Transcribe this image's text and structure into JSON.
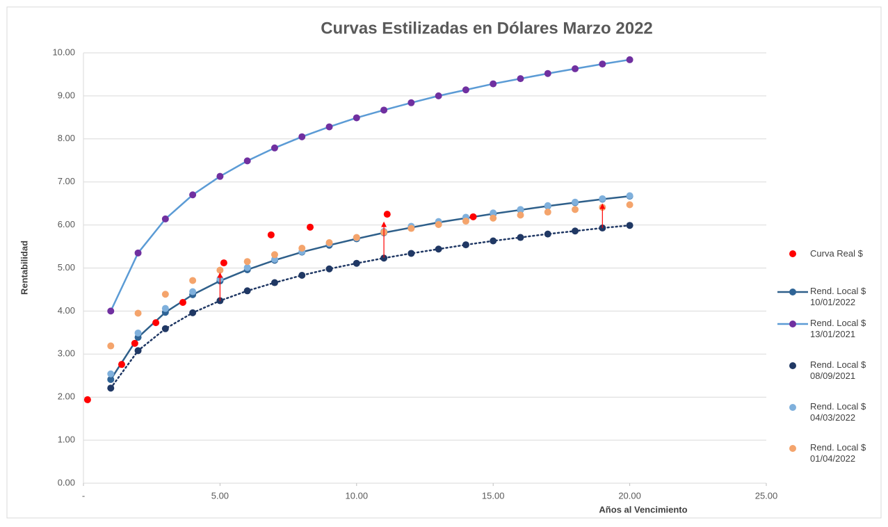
{
  "chart_data": {
    "type": "scatter",
    "title": "Curvas Estilizadas en Dólares Marzo 2022",
    "x_label": "Años al Vencimiento",
    "y_label": "Rentabilidad",
    "xlim": [
      0,
      25
    ],
    "xticks": [
      {
        "value": 0,
        "label": "-"
      },
      {
        "value": 5,
        "label": "5.00"
      },
      {
        "value": 10,
        "label": "10.00"
      },
      {
        "value": 15,
        "label": "15.00"
      },
      {
        "value": 20,
        "label": "20.00"
      },
      {
        "value": 25,
        "label": "25.00"
      }
    ],
    "ylim": [
      0,
      10
    ],
    "yticks": [
      {
        "value": 0,
        "label": "0.00"
      },
      {
        "value": 1,
        "label": "1.00"
      },
      {
        "value": 2,
        "label": "2.00"
      },
      {
        "value": 3,
        "label": "3.00"
      },
      {
        "value": 4,
        "label": "4.00"
      },
      {
        "value": 5,
        "label": "5.00"
      },
      {
        "value": 6,
        "label": "6.00"
      },
      {
        "value": 7,
        "label": "7.00"
      },
      {
        "value": 8,
        "label": "8.00"
      },
      {
        "value": 9,
        "label": "9.00"
      },
      {
        "value": 10,
        "label": "10.00"
      }
    ],
    "grid": true,
    "legend": "right",
    "series": [
      {
        "name": "Curva Real $",
        "color": "#ff0000",
        "line": null,
        "x": [
          0.15,
          1.4,
          1.88,
          2.65,
          3.64,
          5.14,
          6.87,
          8.3,
          11.12,
          14.27
        ],
        "values": [
          1.94,
          2.76,
          3.25,
          3.73,
          4.2,
          5.12,
          5.77,
          5.95,
          6.25,
          6.19
        ]
      },
      {
        "name": "Rend. Local $ 10/01/2022",
        "color": "#2f6496",
        "line_color": "#2e5f8a",
        "line": "solid",
        "x": [
          1,
          2,
          3,
          4,
          5,
          6,
          7,
          8,
          9,
          10,
          11,
          12,
          13,
          14,
          15,
          16,
          17,
          18,
          19,
          20
        ],
        "values": [
          2.41,
          3.39,
          3.97,
          4.38,
          4.7,
          4.96,
          5.18,
          5.37,
          5.53,
          5.68,
          5.82,
          5.94,
          6.06,
          6.16,
          6.26,
          6.35,
          6.44,
          6.52,
          6.6,
          6.67
        ]
      },
      {
        "name": "Rend. Local $ 13/01/2021",
        "color": "#7030a0",
        "line_color": "#5b9bd5",
        "line": "solid",
        "x": [
          1,
          2,
          3,
          4,
          5,
          6,
          7,
          8,
          9,
          10,
          11,
          12,
          13,
          14,
          15,
          16,
          17,
          18,
          19,
          20
        ],
        "values": [
          4.0,
          5.35,
          6.14,
          6.7,
          7.13,
          7.49,
          7.79,
          8.05,
          8.28,
          8.49,
          8.67,
          8.84,
          9.0,
          9.14,
          9.28,
          9.4,
          9.52,
          9.63,
          9.74,
          9.84
        ]
      },
      {
        "name": "Rend. Local $ 08/09/2021",
        "color": "#203864",
        "line_color": "#203864",
        "line": "dotted",
        "x": [
          1,
          2,
          3,
          4,
          5,
          6,
          7,
          8,
          9,
          10,
          11,
          12,
          13,
          14,
          15,
          16,
          17,
          18,
          19,
          20
        ],
        "values": [
          2.21,
          3.08,
          3.59,
          3.96,
          4.24,
          4.47,
          4.66,
          4.83,
          4.98,
          5.11,
          5.23,
          5.34,
          5.44,
          5.54,
          5.63,
          5.71,
          5.79,
          5.86,
          5.93,
          5.99
        ]
      },
      {
        "name": "Rend. Local $ 04/03/2022",
        "color": "#7fb0dc",
        "line": null,
        "x": [
          1,
          2,
          3,
          4,
          5,
          6,
          7,
          8,
          9,
          10,
          11,
          12,
          13,
          14,
          15,
          16,
          17,
          18,
          19,
          20
        ],
        "values": [
          2.54,
          3.49,
          4.06,
          4.45,
          4.75,
          5.01,
          5.2,
          5.38,
          5.57,
          5.7,
          5.85,
          5.97,
          6.08,
          6.18,
          6.28,
          6.36,
          6.45,
          6.53,
          6.61,
          6.68
        ]
      },
      {
        "name": "Rend. Local $ 01/04/2022",
        "color": "#f4a46c",
        "line": null,
        "x": [
          1,
          2,
          3,
          4,
          5,
          6,
          7,
          8,
          9,
          10,
          11,
          12,
          13,
          14,
          15,
          16,
          17,
          18,
          19,
          20
        ],
        "values": [
          3.19,
          3.95,
          4.39,
          4.71,
          4.95,
          5.15,
          5.31,
          5.46,
          5.59,
          5.71,
          5.83,
          5.92,
          6.01,
          6.09,
          6.16,
          6.23,
          6.3,
          6.36,
          6.41,
          6.47
        ]
      }
    ],
    "arrows": [
      {
        "x": 5,
        "from": 4.24,
        "to": 4.9,
        "color": "#ff0000"
      },
      {
        "x": 11,
        "from": 5.24,
        "to": 6.08,
        "color": "#ff0000"
      },
      {
        "x": 19,
        "from": 5.93,
        "to": 6.5,
        "color": "#ff0000"
      }
    ]
  }
}
